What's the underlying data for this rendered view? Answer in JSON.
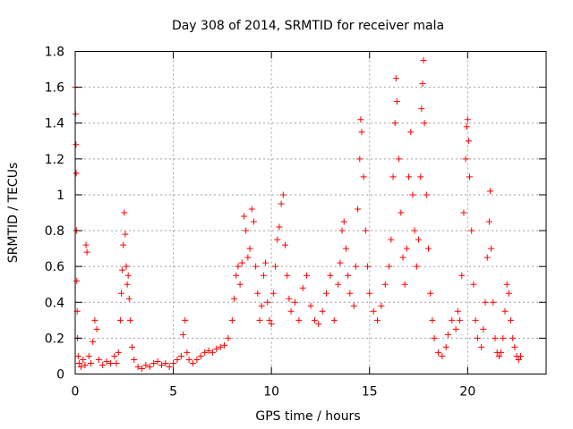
{
  "chart_data": {
    "type": "scatter",
    "title": "Day 308 of 2014, SRMTID for receiver mala",
    "xlabel": "GPS time / hours",
    "ylabel": "SRMTID / TECUs",
    "xlim": [
      0,
      24
    ],
    "ylim": [
      0,
      1.8
    ],
    "xticks": [
      0,
      5,
      10,
      15,
      20
    ],
    "yticks": [
      0,
      0.2,
      0.4,
      0.6,
      0.8,
      1,
      1.2,
      1.4,
      1.6,
      1.8
    ],
    "xtick_labels": [
      "0",
      "5",
      "10",
      "15",
      "20"
    ],
    "ytick_labels": [
      "0",
      "0.2",
      "0.4",
      "0.6",
      "0.8",
      "1",
      "1.2",
      "1.4",
      "1.6",
      "1.8"
    ],
    "grid": true,
    "marker": "+",
    "color": "#ff0000",
    "series": [
      {
        "name": "SRMTID",
        "points": [
          [
            0.0,
            1.6
          ],
          [
            0.02,
            1.45
          ],
          [
            0.04,
            1.28
          ],
          [
            0.05,
            1.12
          ],
          [
            0.06,
            0.8
          ],
          [
            0.08,
            0.52
          ],
          [
            0.1,
            0.35
          ],
          [
            0.12,
            0.2
          ],
          [
            0.15,
            0.1
          ],
          [
            0.2,
            0.06
          ],
          [
            0.3,
            0.04
          ],
          [
            0.4,
            0.08
          ],
          [
            0.5,
            0.05
          ],
          [
            0.55,
            0.72
          ],
          [
            0.6,
            0.68
          ],
          [
            0.7,
            0.1
          ],
          [
            0.8,
            0.06
          ],
          [
            0.9,
            0.18
          ],
          [
            1.0,
            0.3
          ],
          [
            1.1,
            0.25
          ],
          [
            1.2,
            0.08
          ],
          [
            1.4,
            0.05
          ],
          [
            1.6,
            0.07
          ],
          [
            1.8,
            0.06
          ],
          [
            2.0,
            0.1
          ],
          [
            2.1,
            0.06
          ],
          [
            2.2,
            0.12
          ],
          [
            2.3,
            0.3
          ],
          [
            2.35,
            0.45
          ],
          [
            2.4,
            0.58
          ],
          [
            2.45,
            0.72
          ],
          [
            2.5,
            0.9
          ],
          [
            2.55,
            0.78
          ],
          [
            2.6,
            0.6
          ],
          [
            2.65,
            0.5
          ],
          [
            2.7,
            0.55
          ],
          [
            2.75,
            0.42
          ],
          [
            2.8,
            0.3
          ],
          [
            2.9,
            0.15
          ],
          [
            3.0,
            0.08
          ],
          [
            3.2,
            0.04
          ],
          [
            3.4,
            0.03
          ],
          [
            3.6,
            0.05
          ],
          [
            3.8,
            0.04
          ],
          [
            4.0,
            0.06
          ],
          [
            4.2,
            0.07
          ],
          [
            4.4,
            0.05
          ],
          [
            4.6,
            0.06
          ],
          [
            4.8,
            0.04
          ],
          [
            5.0,
            0.06
          ],
          [
            5.2,
            0.08
          ],
          [
            5.4,
            0.1
          ],
          [
            5.5,
            0.22
          ],
          [
            5.6,
            0.3
          ],
          [
            5.7,
            0.12
          ],
          [
            5.8,
            0.08
          ],
          [
            6.0,
            0.06
          ],
          [
            6.2,
            0.08
          ],
          [
            6.4,
            0.1
          ],
          [
            6.6,
            0.12
          ],
          [
            6.8,
            0.13
          ],
          [
            7.0,
            0.12
          ],
          [
            7.2,
            0.14
          ],
          [
            7.4,
            0.15
          ],
          [
            7.6,
            0.16
          ],
          [
            7.8,
            0.2
          ],
          [
            8.0,
            0.3
          ],
          [
            8.1,
            0.42
          ],
          [
            8.2,
            0.55
          ],
          [
            8.3,
            0.6
          ],
          [
            8.4,
            0.5
          ],
          [
            8.5,
            0.62
          ],
          [
            8.6,
            0.88
          ],
          [
            8.7,
            0.8
          ],
          [
            8.8,
            0.65
          ],
          [
            8.9,
            0.7
          ],
          [
            9.0,
            0.92
          ],
          [
            9.1,
            0.85
          ],
          [
            9.2,
            0.6
          ],
          [
            9.3,
            0.45
          ],
          [
            9.4,
            0.3
          ],
          [
            9.5,
            0.38
          ],
          [
            9.6,
            0.55
          ],
          [
            9.7,
            0.62
          ],
          [
            9.8,
            0.4
          ],
          [
            9.9,
            0.3
          ],
          [
            10.0,
            0.28
          ],
          [
            10.1,
            0.45
          ],
          [
            10.2,
            0.6
          ],
          [
            10.3,
            0.75
          ],
          [
            10.4,
            0.82
          ],
          [
            10.5,
            0.95
          ],
          [
            10.6,
            1.0
          ],
          [
            10.7,
            0.72
          ],
          [
            10.8,
            0.55
          ],
          [
            10.9,
            0.42
          ],
          [
            11.0,
            0.35
          ],
          [
            11.2,
            0.4
          ],
          [
            11.4,
            0.3
          ],
          [
            11.6,
            0.48
          ],
          [
            11.8,
            0.55
          ],
          [
            12.0,
            0.38
          ],
          [
            12.2,
            0.3
          ],
          [
            12.4,
            0.28
          ],
          [
            12.6,
            0.35
          ],
          [
            12.8,
            0.45
          ],
          [
            13.0,
            0.55
          ],
          [
            13.2,
            0.3
          ],
          [
            13.4,
            0.5
          ],
          [
            13.5,
            0.62
          ],
          [
            13.6,
            0.8
          ],
          [
            13.7,
            0.85
          ],
          [
            13.8,
            0.7
          ],
          [
            13.9,
            0.55
          ],
          [
            14.0,
            0.45
          ],
          [
            14.2,
            0.38
          ],
          [
            14.3,
            0.6
          ],
          [
            14.4,
            0.92
          ],
          [
            14.5,
            1.2
          ],
          [
            14.55,
            1.42
          ],
          [
            14.6,
            1.35
          ],
          [
            14.7,
            1.1
          ],
          [
            14.8,
            0.8
          ],
          [
            14.9,
            0.6
          ],
          [
            15.0,
            0.45
          ],
          [
            15.2,
            0.35
          ],
          [
            15.4,
            0.3
          ],
          [
            15.6,
            0.38
          ],
          [
            15.8,
            0.5
          ],
          [
            16.0,
            0.6
          ],
          [
            16.1,
            0.75
          ],
          [
            16.2,
            1.1
          ],
          [
            16.3,
            1.4
          ],
          [
            16.35,
            1.65
          ],
          [
            16.4,
            1.52
          ],
          [
            16.5,
            1.2
          ],
          [
            16.6,
            0.9
          ],
          [
            16.7,
            0.65
          ],
          [
            16.8,
            0.5
          ],
          [
            16.9,
            0.7
          ],
          [
            17.0,
            1.1
          ],
          [
            17.1,
            1.35
          ],
          [
            17.2,
            1.0
          ],
          [
            17.3,
            0.8
          ],
          [
            17.4,
            0.6
          ],
          [
            17.5,
            0.75
          ],
          [
            17.6,
            1.1
          ],
          [
            17.65,
            1.48
          ],
          [
            17.7,
            1.62
          ],
          [
            17.75,
            1.75
          ],
          [
            17.8,
            1.4
          ],
          [
            17.9,
            1.0
          ],
          [
            18.0,
            0.7
          ],
          [
            18.1,
            0.45
          ],
          [
            18.2,
            0.3
          ],
          [
            18.3,
            0.2
          ],
          [
            18.5,
            0.12
          ],
          [
            18.7,
            0.1
          ],
          [
            18.9,
            0.15
          ],
          [
            19.0,
            0.22
          ],
          [
            19.2,
            0.3
          ],
          [
            19.4,
            0.25
          ],
          [
            19.5,
            0.35
          ],
          [
            19.6,
            0.3
          ],
          [
            19.7,
            0.55
          ],
          [
            19.8,
            0.9
          ],
          [
            19.9,
            1.2
          ],
          [
            19.95,
            1.38
          ],
          [
            20.0,
            1.42
          ],
          [
            20.05,
            1.3
          ],
          [
            20.1,
            1.1
          ],
          [
            20.2,
            0.8
          ],
          [
            20.3,
            0.5
          ],
          [
            20.4,
            0.3
          ],
          [
            20.5,
            0.2
          ],
          [
            20.7,
            0.15
          ],
          [
            20.8,
            0.25
          ],
          [
            20.9,
            0.4
          ],
          [
            21.0,
            0.65
          ],
          [
            21.1,
            0.85
          ],
          [
            21.15,
            1.02
          ],
          [
            21.2,
            0.7
          ],
          [
            21.3,
            0.4
          ],
          [
            21.4,
            0.2
          ],
          [
            21.5,
            0.12
          ],
          [
            21.6,
            0.1
          ],
          [
            21.7,
            0.12
          ],
          [
            21.8,
            0.2
          ],
          [
            21.9,
            0.35
          ],
          [
            22.0,
            0.5
          ],
          [
            22.1,
            0.45
          ],
          [
            22.2,
            0.3
          ],
          [
            22.3,
            0.2
          ],
          [
            22.4,
            0.15
          ],
          [
            22.5,
            0.1
          ],
          [
            22.6,
            0.08
          ],
          [
            22.7,
            0.1
          ]
        ]
      }
    ]
  }
}
